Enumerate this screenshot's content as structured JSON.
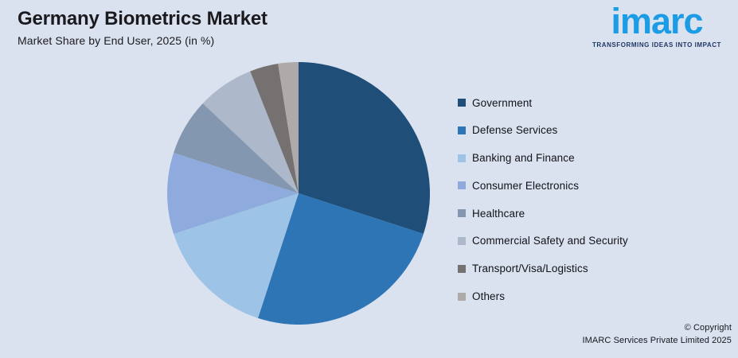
{
  "header": {
    "title": "Germany Biometrics Market",
    "subtitle": "Market Share by End User, 2025 (in %)"
  },
  "logo": {
    "word": "imarc",
    "tagline": "TRANSFORMING IDEAS INTO IMPACT",
    "word_color": "#1b9ce4",
    "tagline_color": "#1f3864"
  },
  "chart_data": {
    "type": "pie",
    "title": "Germany Biometrics Market",
    "subtitle": "Market Share by End User, 2025 (in %)",
    "unit": "%",
    "start_angle_deg": 0,
    "direction": "clockwise",
    "legend_position": "right",
    "segments": [
      {
        "label": "Government",
        "value": 30,
        "color": "#1F4E79"
      },
      {
        "label": "Defense Services",
        "value": 25,
        "color": "#2E75B6"
      },
      {
        "label": "Banking and Finance",
        "value": 15,
        "color": "#9DC3E6"
      },
      {
        "label": "Consumer Electronics",
        "value": 10,
        "color": "#8FAADC"
      },
      {
        "label": "Healthcare",
        "value": 7,
        "color": "#8497B0"
      },
      {
        "label": "Commercial Safety and Security",
        "value": 7,
        "color": "#ADB9CA"
      },
      {
        "label": "Transport/Visa/Logistics",
        "value": 3.5,
        "color": "#757171"
      },
      {
        "label": "Others",
        "value": 2.5,
        "color": "#AEAAAA"
      }
    ]
  },
  "footer": {
    "copyright_line1": "© Copyright",
    "copyright_line2": "IMARC Services Private Limited 2025"
  },
  "colors": {
    "background": "#dbe2ef"
  }
}
